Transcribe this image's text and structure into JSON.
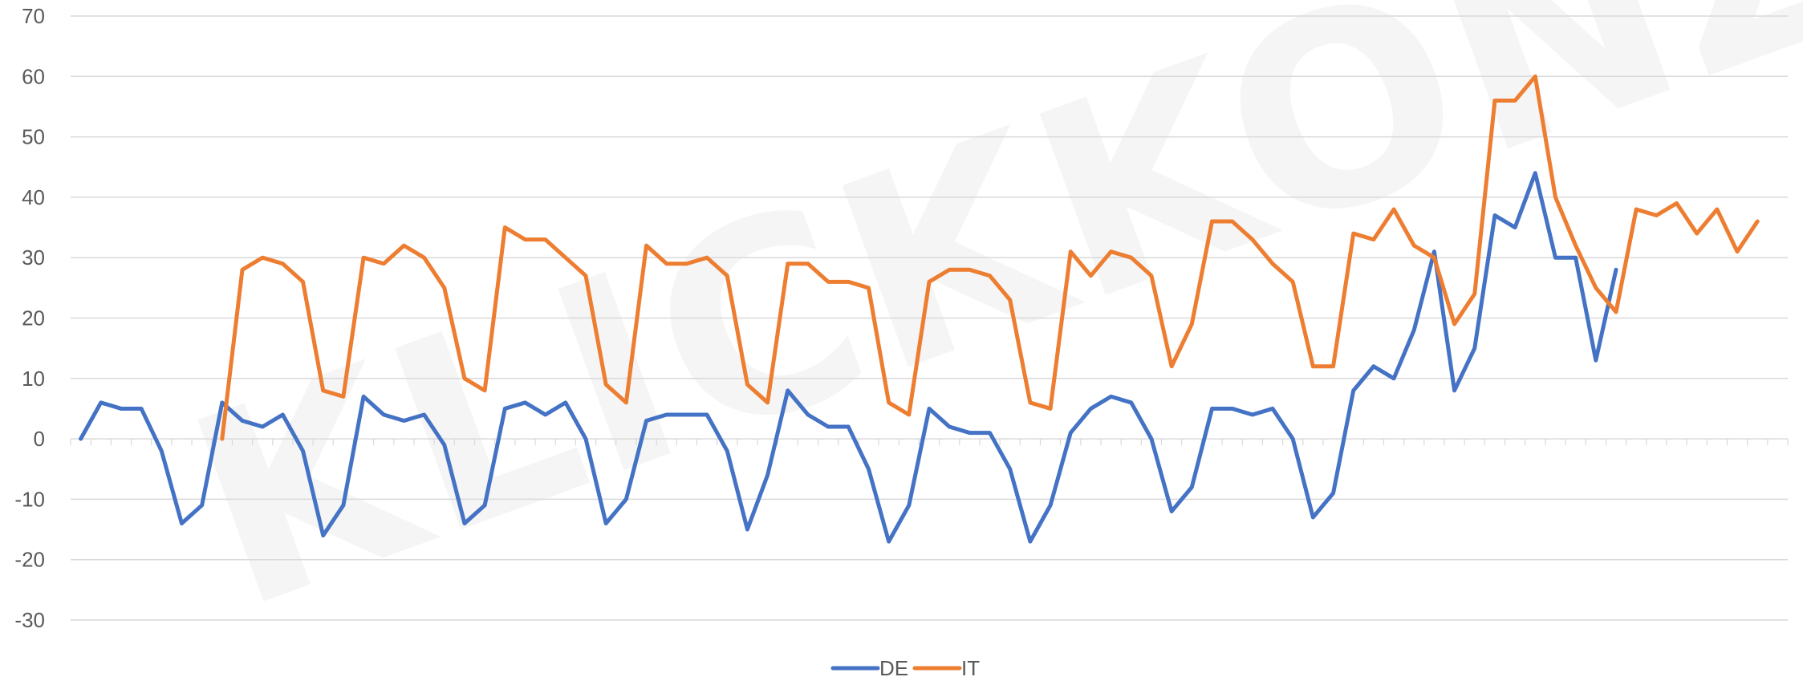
{
  "watermark": "KLICKKONZEPT",
  "chart_data": {
    "type": "line",
    "title": "",
    "xlabel": "",
    "ylabel": "",
    "ylim": [
      -30,
      70
    ],
    "yticks": [
      -30,
      -20,
      -10,
      0,
      10,
      20,
      30,
      40,
      50,
      60,
      70
    ],
    "point_count": 85,
    "grid": true,
    "legend_position": "bottom",
    "series": [
      {
        "name": "DE",
        "color": "#4472C4",
        "start_index": 0,
        "values": [
          0,
          6,
          5,
          5,
          -2,
          -14,
          -11,
          6,
          3,
          2,
          4,
          -2,
          -16,
          -11,
          7,
          4,
          3,
          4,
          -1,
          -14,
          -11,
          5,
          6,
          4,
          6,
          0,
          -14,
          -10,
          3,
          4,
          4,
          4,
          -2,
          -15,
          -6,
          8,
          4,
          2,
          2,
          -5,
          -17,
          -11,
          5,
          2,
          1,
          1,
          -5,
          -17,
          -11,
          1,
          5,
          7,
          6,
          0,
          -12,
          -8,
          5,
          5,
          4,
          5,
          0,
          -13,
          -9,
          8,
          12,
          10,
          18,
          31,
          8,
          15,
          37,
          35,
          44,
          30,
          30,
          13,
          28
        ]
      },
      {
        "name": "IT",
        "color": "#ED7D31",
        "start_index": 7,
        "values": [
          0,
          28,
          30,
          29,
          26,
          8,
          7,
          30,
          29,
          32,
          30,
          25,
          10,
          8,
          35,
          33,
          33,
          30,
          27,
          9,
          6,
          32,
          29,
          29,
          30,
          27,
          9,
          6,
          29,
          29,
          26,
          26,
          25,
          6,
          4,
          26,
          28,
          28,
          27,
          23,
          6,
          5,
          31,
          27,
          31,
          30,
          27,
          12,
          19,
          36,
          36,
          33,
          29,
          26,
          12,
          12,
          34,
          33,
          38,
          32,
          30,
          19,
          24,
          56,
          56,
          60,
          40,
          32,
          25,
          21,
          38,
          37,
          39,
          34,
          38,
          31,
          36
        ]
      }
    ]
  }
}
